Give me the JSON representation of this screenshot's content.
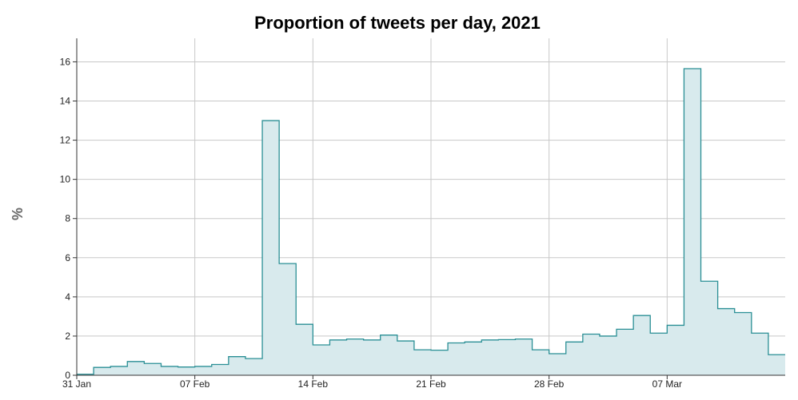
{
  "chart_data": {
    "type": "area",
    "title": "Proportion of tweets per day, 2021",
    "xlabel": "",
    "ylabel": "%",
    "ylim": [
      0,
      17.2
    ],
    "yticks": [
      0,
      2,
      4,
      6,
      8,
      10,
      12,
      14,
      16
    ],
    "xticks": [
      "31 Jan",
      "07 Feb",
      "14 Feb",
      "21 Feb",
      "28 Feb",
      "07 Mar"
    ],
    "step": "post",
    "grid": true,
    "colors": {
      "line": "#2a8f95",
      "fill": "#d8eaed"
    },
    "x": [
      "31 Jan",
      "01 Feb",
      "02 Feb",
      "03 Feb",
      "04 Feb",
      "05 Feb",
      "06 Feb",
      "07 Feb",
      "08 Feb",
      "09 Feb",
      "10 Feb",
      "11 Feb",
      "12 Feb",
      "13 Feb",
      "14 Feb",
      "15 Feb",
      "16 Feb",
      "17 Feb",
      "18 Feb",
      "19 Feb",
      "20 Feb",
      "21 Feb",
      "22 Feb",
      "23 Feb",
      "24 Feb",
      "25 Feb",
      "26 Feb",
      "27 Feb",
      "28 Feb",
      "01 Mar",
      "02 Mar",
      "03 Mar",
      "04 Mar",
      "05 Mar",
      "06 Mar",
      "07 Mar",
      "08 Mar",
      "09 Mar",
      "10 Mar",
      "11 Mar",
      "12 Mar",
      "13 Mar"
    ],
    "values": [
      0.05,
      0.4,
      0.45,
      0.7,
      0.6,
      0.45,
      0.42,
      0.45,
      0.55,
      0.95,
      0.85,
      13.0,
      5.7,
      2.6,
      1.55,
      1.8,
      1.85,
      1.8,
      2.05,
      1.75,
      1.3,
      1.28,
      1.65,
      1.7,
      1.8,
      1.82,
      1.85,
      1.3,
      1.1,
      1.7,
      2.1,
      2.0,
      2.35,
      3.05,
      2.15,
      2.55,
      15.65,
      4.8,
      3.4,
      3.2,
      2.15,
      1.05
    ]
  }
}
